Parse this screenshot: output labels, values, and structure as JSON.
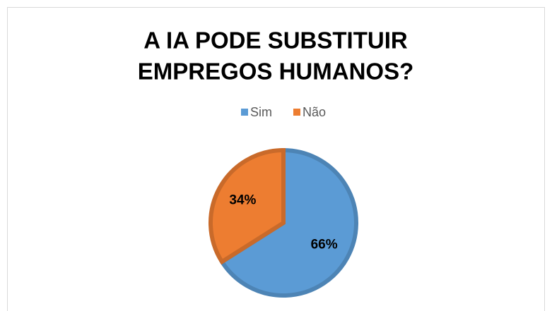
{
  "chart_data": {
    "type": "pie",
    "title": [
      "A IA PODE SUBSTITUIR",
      "EMPREGOS HUMANOS?"
    ],
    "categories": [
      "Sim",
      "Não"
    ],
    "values": [
      66,
      34
    ],
    "value_labels": [
      "66%",
      "34%"
    ],
    "colors": [
      "#5b9bd5",
      "#ed7d31"
    ],
    "legend": "top"
  }
}
